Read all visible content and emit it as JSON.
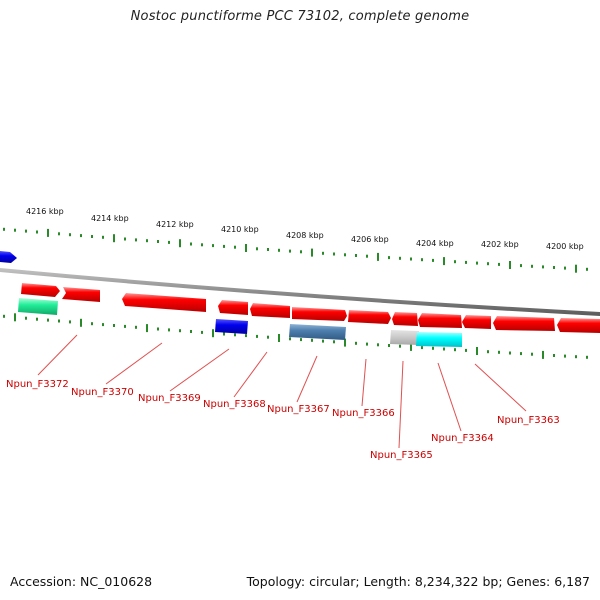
{
  "title": "Nostoc punctiforme PCC 73102, complete genome",
  "footer": {
    "accession": "Accession: NC_010628",
    "topology": "Topology: circular; Length: 8,234,322 bp; Genes: 6,187"
  },
  "colors": {
    "gene_red": "#ff0000",
    "tick_green": "#2a8a2a",
    "label_red": "#cc0000",
    "backbone_grey": "#8c8c8c",
    "blue": "#0000ee",
    "steel_blue": "#4f7fae",
    "cyan": "#00ffff",
    "teal_green": "#22ee99",
    "light_grey": "#c8c8c8"
  },
  "kbp_ticks": [
    "4216 kbp",
    "4214 kbp",
    "4212 kbp",
    "4210 kbp",
    "4208 kbp",
    "4206 kbp",
    "4204 kbp",
    "4202 kbp",
    "4200 kbp"
  ],
  "gene_labels": [
    "Npun_F3372",
    "Npun_F3370",
    "Npun_F3369",
    "Npun_F3368",
    "Npun_F3367",
    "Npun_F3366",
    "Npun_F3365",
    "Npun_F3364",
    "Npun_F3363"
  ],
  "features": [
    {
      "kind": "arrow",
      "color": "red"
    },
    {
      "kind": "arrow",
      "color": "red"
    },
    {
      "kind": "arrow",
      "color": "red"
    },
    {
      "kind": "arrow",
      "color": "red"
    },
    {
      "kind": "arrow",
      "color": "red"
    },
    {
      "kind": "arrow",
      "color": "red"
    },
    {
      "kind": "arrow",
      "color": "red"
    },
    {
      "kind": "arrow",
      "color": "red"
    },
    {
      "kind": "arrow",
      "color": "red"
    },
    {
      "kind": "arrow",
      "color": "red"
    },
    {
      "kind": "arrow",
      "color": "red"
    },
    {
      "kind": "arrow",
      "color": "red"
    },
    {
      "kind": "box",
      "color": "teal_green"
    },
    {
      "kind": "box",
      "color": "blue"
    },
    {
      "kind": "box",
      "color": "steel_blue"
    },
    {
      "kind": "box",
      "color": "light_grey"
    },
    {
      "kind": "box",
      "color": "cyan"
    },
    {
      "kind": "arrow",
      "color": "blue"
    }
  ]
}
